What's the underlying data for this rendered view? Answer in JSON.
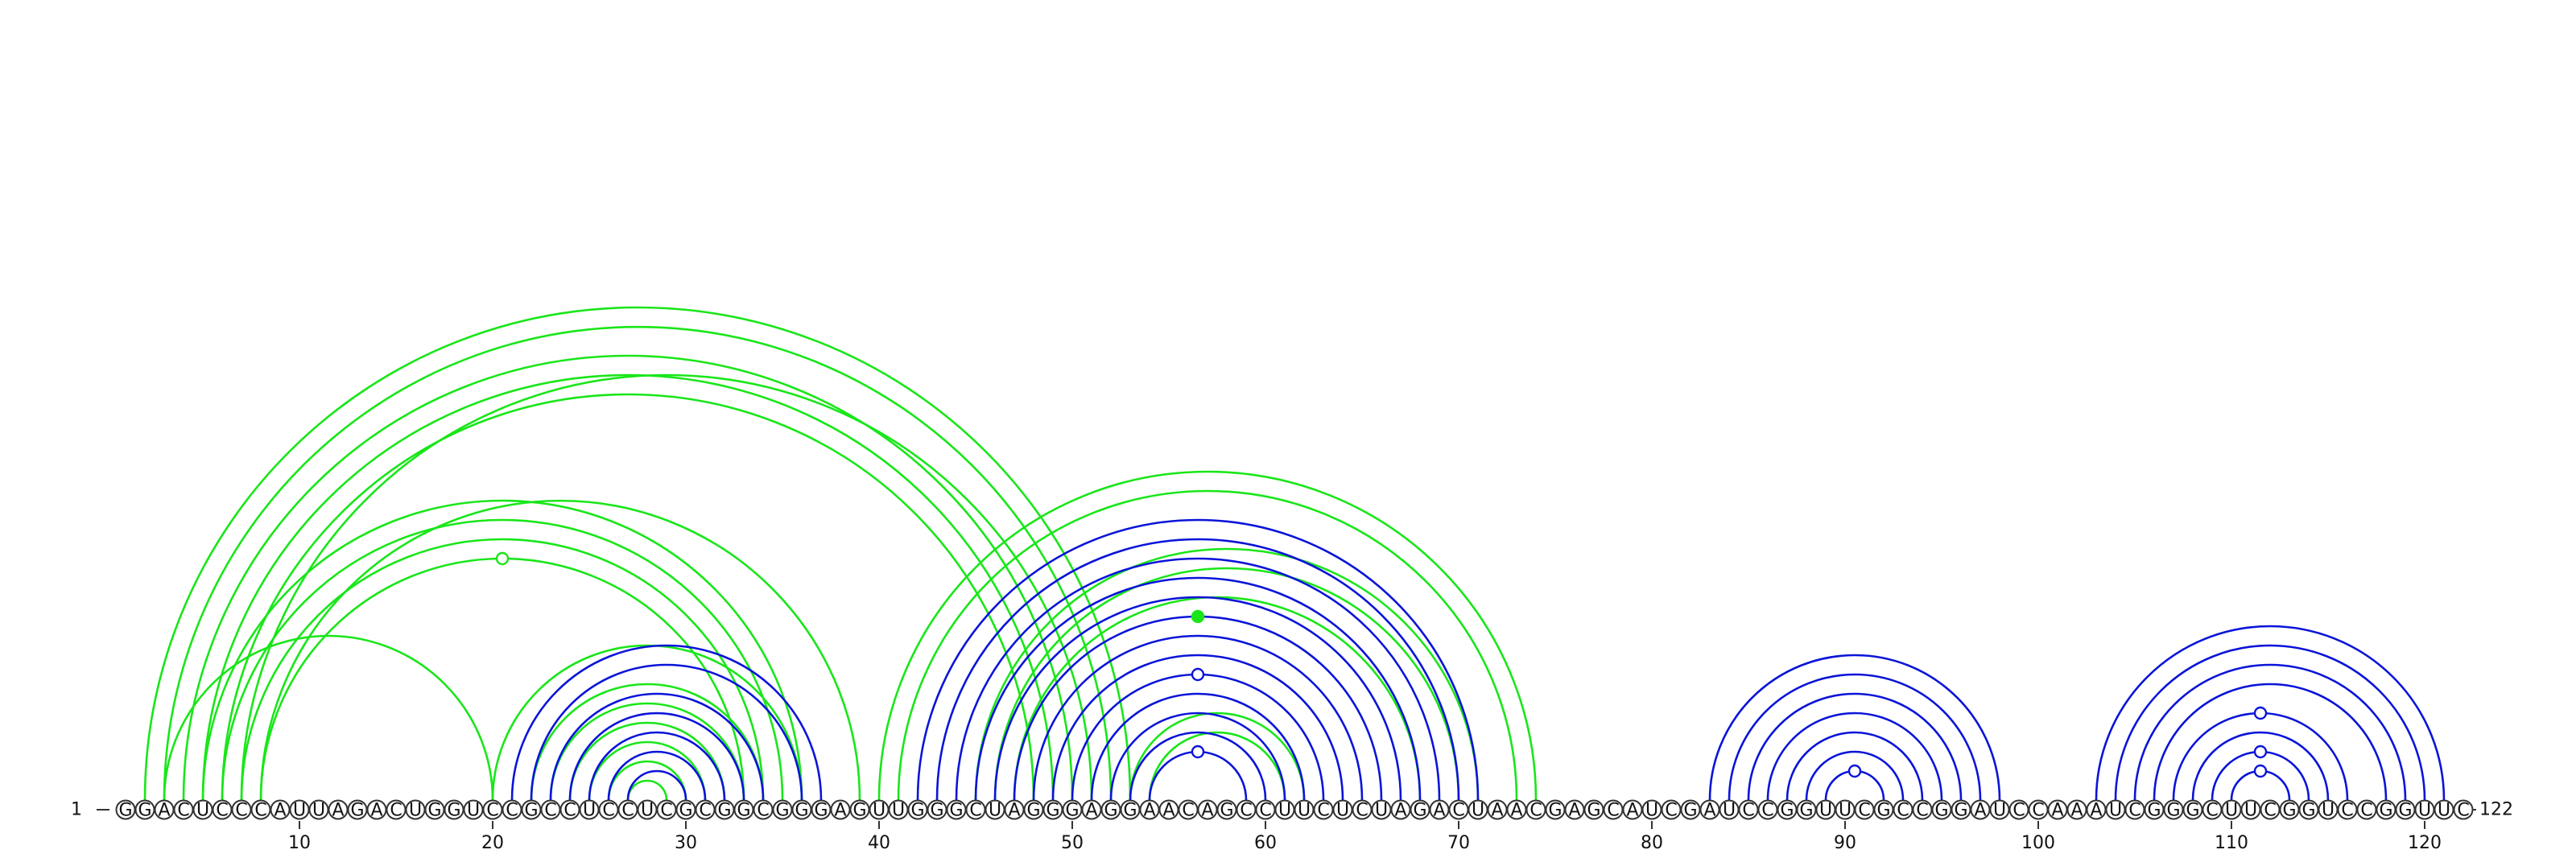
{
  "sequence": "GGACUCCCAUUAGACUGGUCCGCCUCCUCGCGGCGGGAGUUGGGCUAGGGAGGAACAGCCUUCUCUAGACUAACGAGCAUCGAUCCGGUUCGCCGGAUCCAAAUCGGGCUUCGGUCCGGUUC",
  "start_label": "1",
  "end_label": "122",
  "ticks": [
    "10",
    "20",
    "30",
    "40",
    "50",
    "60",
    "70",
    "80",
    "90",
    "100",
    "110",
    "120"
  ],
  "colors": {
    "blue_arc": "#0a14d8",
    "green_arc": "#19e619",
    "nucleotide_stroke": "#333333"
  },
  "arcs": {
    "blue": [
      [
        21,
        37
      ],
      [
        22,
        36
      ],
      [
        23,
        34
      ],
      [
        24,
        33
      ],
      [
        25,
        32
      ],
      [
        26,
        31
      ],
      [
        27,
        30
      ],
      [
        42,
        71
      ],
      [
        43,
        70
      ],
      [
        44,
        69
      ],
      [
        45,
        68
      ],
      [
        46,
        67
      ],
      [
        47,
        66
      ],
      [
        48,
        65
      ],
      [
        49,
        64
      ],
      [
        50,
        63
      ],
      [
        51,
        62
      ],
      [
        52,
        61
      ],
      [
        53,
        60
      ],
      [
        54,
        59
      ],
      [
        83,
        98
      ],
      [
        84,
        97
      ],
      [
        85,
        96
      ],
      [
        86,
        95
      ],
      [
        87,
        94
      ],
      [
        88,
        93
      ],
      [
        89,
        92
      ],
      [
        103,
        121
      ],
      [
        104,
        120
      ],
      [
        105,
        119
      ],
      [
        106,
        118
      ],
      [
        107,
        116
      ],
      [
        108,
        115
      ],
      [
        109,
        114
      ],
      [
        110,
        113
      ]
    ],
    "green": [
      [
        2,
        53
      ],
      [
        3,
        52
      ],
      [
        4,
        50
      ],
      [
        5,
        49
      ],
      [
        6,
        48
      ],
      [
        7,
        51
      ],
      [
        8,
        39
      ],
      [
        5,
        36
      ],
      [
        6,
        35
      ],
      [
        7,
        34
      ],
      [
        8,
        33
      ],
      [
        3,
        20
      ],
      [
        20,
        36
      ],
      [
        22,
        34
      ],
      [
        23,
        33
      ],
      [
        24,
        32
      ],
      [
        25,
        31
      ],
      [
        26,
        30
      ],
      [
        27,
        29
      ],
      [
        40,
        74
      ],
      [
        41,
        73
      ],
      [
        45,
        71
      ],
      [
        46,
        70
      ],
      [
        47,
        68
      ],
      [
        53,
        62
      ],
      [
        54,
        61
      ]
    ]
  },
  "markers": {
    "hollow_blue": [
      [
        50,
        63
      ],
      [
        54,
        59
      ],
      [
        89,
        92
      ],
      [
        107,
        116
      ],
      [
        109,
        114
      ],
      [
        110,
        113
      ]
    ],
    "hollow_green": [
      [
        8,
        33
      ]
    ],
    "filled_green": [
      [
        47,
        66
      ]
    ]
  }
}
